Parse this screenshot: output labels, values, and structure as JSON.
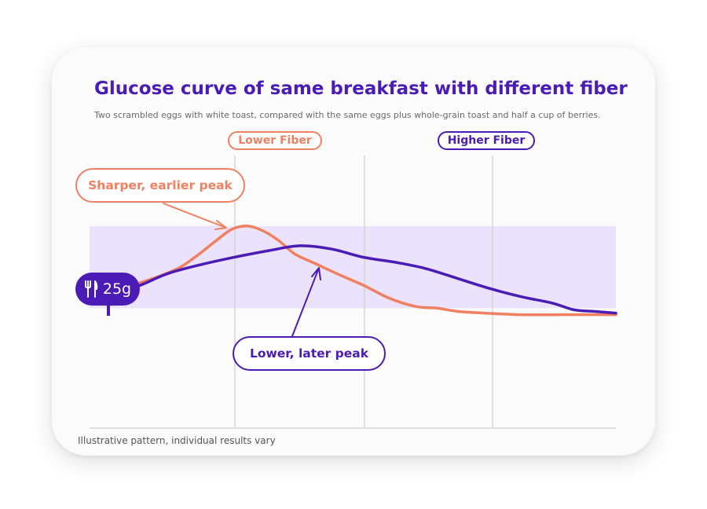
{
  "chart_data": {
    "type": "line",
    "title": "Glucose curve of same breakfast with different fiber",
    "subtitle": "Two scrambled eggs with white toast, compared with the same eggs plus whole-grain toast and half a cup of berries.",
    "footnote": "Illustrative pattern, individual results vary",
    "xlim": [
      0,
      100
    ],
    "ylim": [
      0,
      100
    ],
    "target_range": [
      30,
      80
    ],
    "series": [
      {
        "name": "Lower Fiber",
        "color": "#f08060",
        "x": [
          0,
          8,
          16,
          20,
          24,
          27,
          30,
          33,
          36,
          39,
          43,
          47,
          52,
          57,
          62,
          66,
          70,
          75,
          82,
          90,
          100
        ],
        "y": [
          39,
          44,
          53,
          61,
          71,
          78,
          80,
          77,
          71,
          63,
          57,
          51,
          44,
          36,
          31,
          30,
          28,
          27,
          26,
          26,
          26
        ]
      },
      {
        "name": "Higher Fiber",
        "color": "#4a1cb5",
        "x": [
          0,
          8,
          14,
          18,
          26,
          34,
          40,
          46,
          52,
          58,
          64,
          70,
          76,
          82,
          88,
          92,
          96,
          100
        ],
        "y": [
          36,
          42,
          50,
          54,
          60,
          65,
          68,
          66,
          61,
          58,
          54,
          48,
          42,
          37,
          33,
          29,
          28,
          27
        ]
      }
    ],
    "phase_labels": [
      "Lower Fiber",
      "Higher Fiber"
    ],
    "annotations": [
      {
        "text": "Sharper, earlier peak",
        "series": "Lower Fiber"
      },
      {
        "text": "Lower, later peak",
        "series": "Higher Fiber"
      }
    ],
    "marker": {
      "icon": "fork-knife-icon",
      "label": "25g"
    },
    "colors": {
      "lower": "#f08060",
      "higher": "#4a1cb5",
      "band": "#ebe2fb",
      "title": "#4a1cb5"
    },
    "grid": "vertical"
  }
}
